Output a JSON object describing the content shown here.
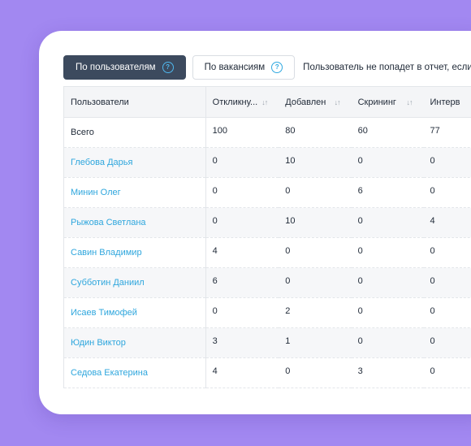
{
  "tabs": [
    {
      "label": "По пользователям",
      "active": true
    },
    {
      "label": "По вакансиям",
      "active": false
    }
  ],
  "help_glyph": "?",
  "note": "Пользователь не попадет в отчет, если с",
  "table": {
    "first_header": "Пользователи",
    "columns": [
      "Откликну...",
      "Добавлен",
      "Скрининг",
      "Интерв"
    ],
    "sort_icon": "↓↑",
    "total": {
      "name": "Всего",
      "values": [
        "100",
        "80",
        "60",
        "77"
      ]
    },
    "rows": [
      {
        "name": "Глебова Дарья",
        "values": [
          "0",
          "10",
          "0",
          "0"
        ]
      },
      {
        "name": "Минин Олег",
        "values": [
          "0",
          "0",
          "6",
          "0"
        ]
      },
      {
        "name": "Рыжова Светлана",
        "values": [
          "0",
          "10",
          "0",
          "4"
        ]
      },
      {
        "name": "Савин Владимир",
        "values": [
          "4",
          "0",
          "0",
          "0"
        ]
      },
      {
        "name": "Субботин Даниил",
        "values": [
          "6",
          "0",
          "0",
          "0"
        ]
      },
      {
        "name": "Исаев Тимофей",
        "values": [
          "0",
          "2",
          "0",
          "0"
        ]
      },
      {
        "name": "Юдин Виктор",
        "values": [
          "3",
          "1",
          "0",
          "0"
        ]
      },
      {
        "name": "Седова Екатерина",
        "values": [
          "4",
          "0",
          "3",
          "0"
        ]
      }
    ]
  },
  "colors": {
    "background": "#a288f1",
    "active_tab": "#3c4a5e",
    "link": "#2ea6dd",
    "help": "#2fa8e0"
  }
}
